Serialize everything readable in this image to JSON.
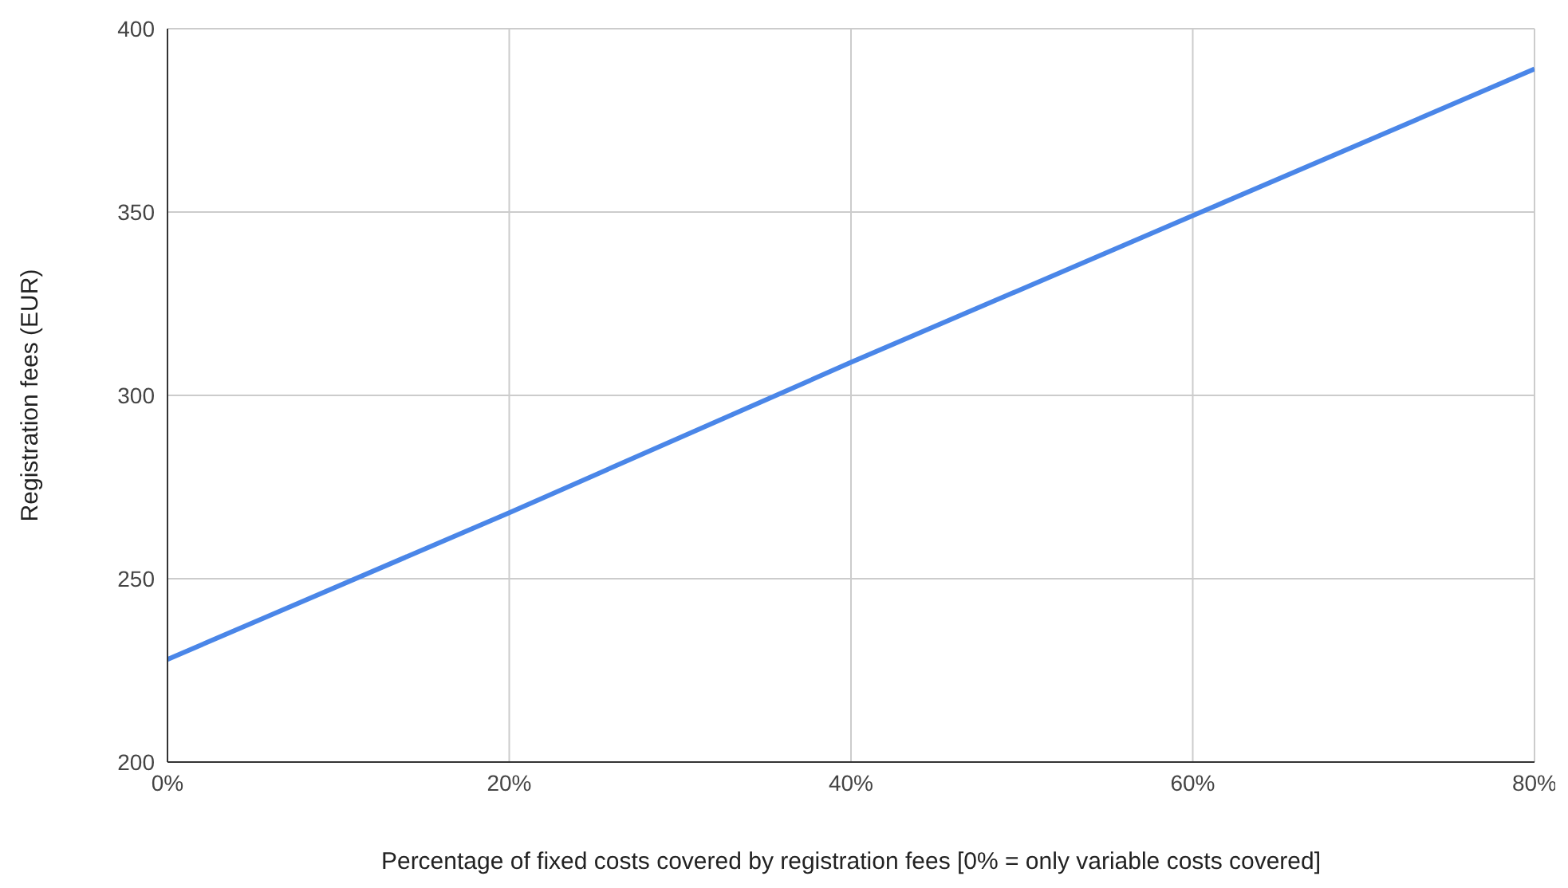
{
  "chart_data": {
    "type": "line",
    "xlabel": "Percentage of fixed costs covered by registration fees [0% = only variable costs covered]",
    "ylabel": "Registration fees (EUR)",
    "x": [
      0,
      20,
      40,
      60,
      80
    ],
    "series": [
      {
        "color": "#4a86e8",
        "values": [
          228,
          268,
          309,
          349,
          389
        ]
      }
    ],
    "xlim": [
      0,
      80
    ],
    "xticks": [
      {
        "value": 0,
        "label": "0%"
      },
      {
        "value": 20,
        "label": "20%"
      },
      {
        "value": 40,
        "label": "40%"
      },
      {
        "value": 60,
        "label": "60%"
      },
      {
        "value": 80,
        "label": "80%"
      }
    ],
    "ylim": [
      200,
      400
    ],
    "yticks": [
      200,
      250,
      300,
      350,
      400
    ],
    "grid": true,
    "legend": false,
    "marker": "none",
    "line_style": "solid"
  }
}
